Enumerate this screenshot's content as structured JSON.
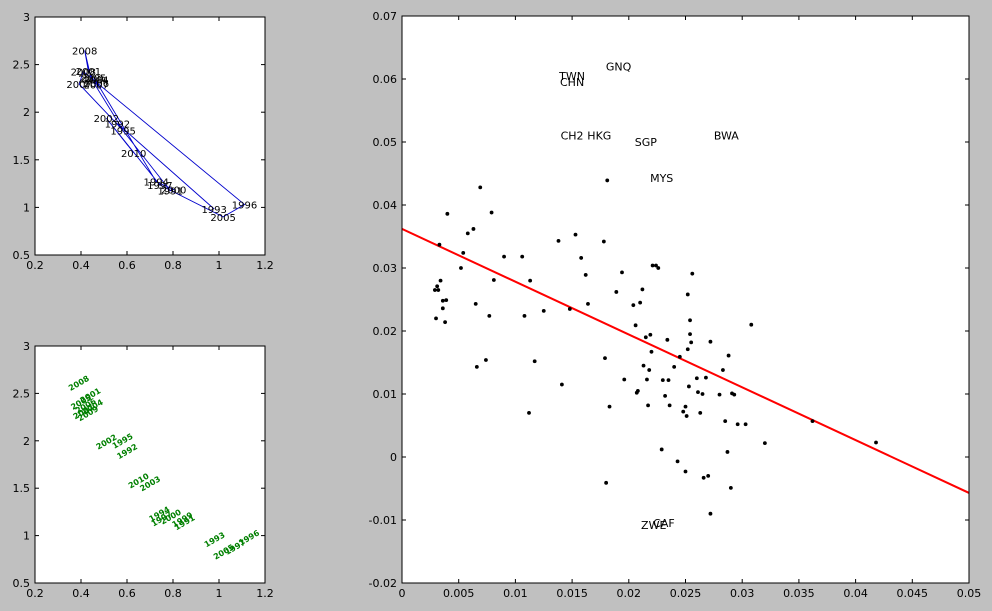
{
  "figure": {
    "background": "#c0c0c0",
    "axes_background": "#ffffff"
  },
  "chart_data": [
    {
      "id": "top_left",
      "type": "line",
      "color": "#0000cc",
      "xlim": [
        0.2,
        1.2
      ],
      "ylim": [
        0.5,
        3
      ],
      "xticks": [
        "0.2",
        "0.4",
        "0.6",
        "0.8",
        "1",
        "1.2"
      ],
      "yticks": [
        "0.5",
        "1",
        "1.5",
        "2",
        "2.5",
        "3"
      ],
      "x": [
        0.979,
        0.558,
        0.788,
        0.803,
        0.727,
        0.455,
        0.465,
        0.467,
        0.466,
        0.432,
        0.416,
        0.444,
        0.583,
        0.392,
        0.41,
        1.111,
        1.018,
        0.743,
        0.51,
        0.629
      ],
      "y": [
        0.983,
        1.882,
        1.176,
        1.187,
        1.27,
        2.367,
        2.343,
        2.306,
        2.293,
        2.433,
        2.649,
        2.356,
        1.809,
        2.295,
        2.427,
        1.03,
        0.9,
        1.235,
        1.937,
        1.574
      ],
      "point_labels": [
        {
          "text": "1993",
          "x": 0.979,
          "y": 0.983
        },
        {
          "text": "1992",
          "x": 0.558,
          "y": 1.882
        },
        {
          "text": "1991",
          "x": 0.788,
          "y": 1.176
        },
        {
          "text": "2000",
          "x": 0.803,
          "y": 1.187
        },
        {
          "text": "1994",
          "x": 0.727,
          "y": 1.27
        },
        {
          "text": "2005",
          "x": 0.455,
          "y": 2.367
        },
        {
          "text": "2004",
          "x": 0.465,
          "y": 2.343
        },
        {
          "text": "2006",
          "x": 0.467,
          "y": 2.306
        },
        {
          "text": "2007",
          "x": 0.466,
          "y": 2.293
        },
        {
          "text": "2001",
          "x": 0.432,
          "y": 2.433
        },
        {
          "text": "2008",
          "x": 0.416,
          "y": 2.649
        },
        {
          "text": "2009",
          "x": 0.444,
          "y": 2.356
        },
        {
          "text": "1995",
          "x": 0.583,
          "y": 1.809
        },
        {
          "text": "2007",
          "x": 0.392,
          "y": 2.295
        },
        {
          "text": "2008",
          "x": 0.41,
          "y": 2.427
        },
        {
          "text": "1996",
          "x": 1.111,
          "y": 1.03
        },
        {
          "text": "2005",
          "x": 1.018,
          "y": 0.9
        },
        {
          "text": "1997",
          "x": 0.743,
          "y": 1.235
        },
        {
          "text": "2002",
          "x": 0.51,
          "y": 1.937
        },
        {
          "text": "2010",
          "x": 0.629,
          "y": 1.574
        }
      ]
    },
    {
      "id": "bottom_left",
      "type": "scatter",
      "color": "#008000",
      "xlim": [
        0.2,
        1.2
      ],
      "ylim": [
        0.5,
        3
      ],
      "xticks": [
        "0.2",
        "0.4",
        "0.6",
        "0.8",
        "1",
        "1.2"
      ],
      "yticks": [
        "0.5",
        "1",
        "1.5",
        "2",
        "2.5",
        "3"
      ],
      "point_labels": [
        {
          "text": "2008",
          "x": 0.39,
          "y": 2.61
        },
        {
          "text": "2001",
          "x": 0.44,
          "y": 2.48
        },
        {
          "text": "2005",
          "x": 0.4,
          "y": 2.41
        },
        {
          "text": "2006",
          "x": 0.42,
          "y": 2.37
        },
        {
          "text": "2004",
          "x": 0.45,
          "y": 2.36
        },
        {
          "text": "2007",
          "x": 0.41,
          "y": 2.31
        },
        {
          "text": "2009",
          "x": 0.43,
          "y": 2.29
        },
        {
          "text": "2002",
          "x": 0.51,
          "y": 1.99
        },
        {
          "text": "1995",
          "x": 0.58,
          "y": 2.0
        },
        {
          "text": "1992",
          "x": 0.6,
          "y": 1.89
        },
        {
          "text": "2010",
          "x": 0.65,
          "y": 1.58
        },
        {
          "text": "2003",
          "x": 0.7,
          "y": 1.55
        },
        {
          "text": "1994",
          "x": 0.74,
          "y": 1.23
        },
        {
          "text": "1997",
          "x": 0.75,
          "y": 1.18
        },
        {
          "text": "2000",
          "x": 0.79,
          "y": 1.2
        },
        {
          "text": "1999",
          "x": 0.84,
          "y": 1.17
        },
        {
          "text": "1991",
          "x": 0.85,
          "y": 1.14
        },
        {
          "text": "1993",
          "x": 0.98,
          "y": 0.96
        },
        {
          "text": "2005",
          "x": 1.02,
          "y": 0.83
        },
        {
          "text": "1997",
          "x": 1.07,
          "y": 0.88
        },
        {
          "text": "1996",
          "x": 1.13,
          "y": 0.98
        }
      ]
    },
    {
      "id": "right",
      "type": "scatter",
      "color": "#000000",
      "xlim": [
        0,
        0.05
      ],
      "ylim": [
        -0.02,
        0.07
      ],
      "xticks": [
        "0",
        "0.005",
        "0.01",
        "0.015",
        "0.02",
        "0.025",
        "0.03",
        "0.035",
        "0.04",
        "0.045",
        "0.05"
      ],
      "yticks": [
        "-0.02",
        "-0.01",
        "0",
        "0.01",
        "0.02",
        "0.03",
        "0.04",
        "0.05",
        "0.06",
        "0.07"
      ],
      "fit_line": {
        "color": "#ff0000",
        "x": [
          0,
          0.05
        ],
        "y": [
          0.0362,
          -0.0057
        ]
      },
      "points": {
        "x": [
          0.0029,
          0.0032,
          0.003,
          0.0034,
          0.0031,
          0.0033,
          0.0036,
          0.0038,
          0.004,
          0.0036,
          0.0039,
          0.0052,
          0.0054,
          0.0058,
          0.0063,
          0.0066,
          0.0065,
          0.0069,
          0.0074,
          0.0077,
          0.0079,
          0.0081,
          0.009,
          0.0106,
          0.0108,
          0.0112,
          0.0113,
          0.0117,
          0.0125,
          0.0138,
          0.0141,
          0.0148,
          0.0153,
          0.0158,
          0.0162,
          0.0164,
          0.0178,
          0.0179,
          0.018,
          0.0181,
          0.0183,
          0.0189,
          0.0194,
          0.0196,
          0.0204,
          0.0206,
          0.0207,
          0.0208,
          0.021,
          0.0212,
          0.0213,
          0.0215,
          0.0216,
          0.0217,
          0.0218,
          0.0219,
          0.0221,
          0.0224,
          0.0226,
          0.0229,
          0.0232,
          0.0234,
          0.0236,
          0.024,
          0.0243,
          0.0245,
          0.0248,
          0.025,
          0.0251,
          0.0252,
          0.0252,
          0.0253,
          0.0254,
          0.0255,
          0.0256,
          0.026,
          0.0263,
          0.0265,
          0.0266,
          0.0268,
          0.027,
          0.0272,
          0.028,
          0.0283,
          0.0285,
          0.0287,
          0.0288,
          0.029,
          0.0293,
          0.0296,
          0.0303,
          0.0308,
          0.032,
          0.0362,
          0.0418,
          0.025,
          0.023,
          0.0235,
          0.0272,
          0.0291,
          0.022,
          0.0261,
          0.0254
        ],
        "y": [
          0.0265,
          0.0265,
          0.022,
          0.028,
          0.0271,
          0.0337,
          0.0236,
          0.0214,
          0.0386,
          0.0248,
          0.0249,
          0.03,
          0.0324,
          0.0355,
          0.0362,
          0.0143,
          0.0243,
          0.0428,
          0.0154,
          0.0224,
          0.0388,
          0.0281,
          0.0318,
          0.0318,
          0.0224,
          0.007,
          0.028,
          0.0152,
          0.0232,
          0.0343,
          0.0115,
          0.0235,
          0.0353,
          0.0316,
          0.0289,
          0.0243,
          0.0342,
          0.0157,
          -0.0041,
          0.0439,
          0.008,
          0.0262,
          0.0293,
          0.0123,
          0.0241,
          0.0209,
          0.0102,
          0.0105,
          0.0245,
          0.0266,
          0.0145,
          0.019,
          0.0123,
          0.0082,
          0.0138,
          0.0194,
          0.0304,
          0.0304,
          0.03,
          0.0012,
          0.0097,
          0.0186,
          0.0082,
          0.0143,
          -0.0007,
          0.0159,
          0.0072,
          0.008,
          0.0065,
          0.0258,
          0.0171,
          0.0112,
          0.0217,
          0.0182,
          0.0291,
          0.0125,
          0.007,
          0.01,
          -0.0033,
          0.0126,
          -0.003,
          -0.009,
          0.0099,
          0.0138,
          0.0057,
          0.0008,
          0.0161,
          -0.0049,
          0.0099,
          0.0052,
          0.0052,
          0.021,
          0.0022,
          0.0057,
          0.0023,
          -0.0023,
          0.0122,
          0.0122,
          0.0183,
          0.0101,
          0.0167,
          0.0103,
          0.0195
        ],
        "missing_skip": true
      },
      "text_labels": [
        {
          "text": "TWN",
          "x": 0.015,
          "y": 0.0605
        },
        {
          "text": "CHN",
          "x": 0.015,
          "y": 0.0595
        },
        {
          "text": "GNQ",
          "x": 0.0191,
          "y": 0.062
        },
        {
          "text": "CH2",
          "x": 0.015,
          "y": 0.051
        },
        {
          "text": "HKG",
          "x": 0.0174,
          "y": 0.051
        },
        {
          "text": "SGP",
          "x": 0.0215,
          "y": 0.05
        },
        {
          "text": "BWA",
          "x": 0.0286,
          "y": 0.051
        },
        {
          "text": "MYS",
          "x": 0.0229,
          "y": 0.0443
        },
        {
          "text": "CAF",
          "x": 0.0231,
          "y": -0.0105
        },
        {
          "text": "ZWE",
          "x": 0.0222,
          "y": -0.0108
        }
      ]
    }
  ]
}
